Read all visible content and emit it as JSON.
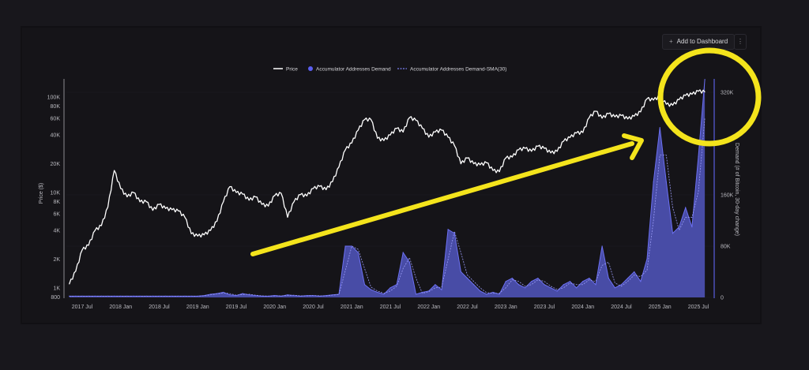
{
  "toolbar": {
    "add_label": "Add to Dashboard",
    "add_icon": "plus-icon",
    "more_icon": "more-vertical-icon"
  },
  "colors": {
    "price": "#ffffff",
    "demand_fill": "#4e52b6",
    "demand_line": "#6c70f2",
    "sma": "#9a9cf8",
    "annotation": "#f4e41c"
  },
  "chart_data": {
    "type": "line+area",
    "legend": {
      "placement": "top-center",
      "items": [
        "Price",
        "Accumulator Addresses Demand",
        "Accumulator Addresses Demand-SMA(30)"
      ]
    },
    "ylabel_left": "Price ($)",
    "ylabel_right": "Demand (# of Bitcoin, 30-day change)",
    "y_left_scale": "log",
    "y_left_ticks": [
      "100K",
      "80K",
      "60K",
      "40K",
      "20K",
      "10K",
      "8K",
      "6K",
      "4K",
      "2K",
      "1K",
      "800"
    ],
    "y_left_tick_values": [
      100000,
      80000,
      60000,
      40000,
      20000,
      10000,
      8000,
      6000,
      4000,
      2000,
      1000,
      800
    ],
    "y_right_ticks": [
      "320K",
      "160K",
      "80K",
      "0"
    ],
    "y_right_tick_values": [
      320000,
      160000,
      80000,
      0
    ],
    "x_ticks": [
      "2017 Jul",
      "2018 Jan",
      "2018 Jul",
      "2019 Jan",
      "2019 Jul",
      "2020 Jan",
      "2020 Jul",
      "2021 Jan",
      "2021 Jul",
      "2022 Jan",
      "2022 Jul",
      "2023 Jan",
      "2023 Jul",
      "2024 Jan",
      "2024 Jul",
      "2025 Jan",
      "2025 Jul"
    ],
    "x_tick_dates": [
      "2017-07",
      "2018-01",
      "2018-07",
      "2019-01",
      "2019-07",
      "2020-01",
      "2020-07",
      "2021-01",
      "2021-07",
      "2022-01",
      "2022-07",
      "2023-01",
      "2023-07",
      "2024-01",
      "2024-07",
      "2025-01",
      "2025-07"
    ],
    "x": [
      "2017-05",
      "2017-06",
      "2017-07",
      "2017-08",
      "2017-09",
      "2017-10",
      "2017-11",
      "2017-12",
      "2018-01",
      "2018-02",
      "2018-03",
      "2018-04",
      "2018-05",
      "2018-06",
      "2018-07",
      "2018-08",
      "2018-09",
      "2018-10",
      "2018-11",
      "2018-12",
      "2019-01",
      "2019-02",
      "2019-03",
      "2019-04",
      "2019-05",
      "2019-06",
      "2019-07",
      "2019-08",
      "2019-09",
      "2019-10",
      "2019-11",
      "2019-12",
      "2020-01",
      "2020-02",
      "2020-03",
      "2020-04",
      "2020-05",
      "2020-06",
      "2020-07",
      "2020-08",
      "2020-09",
      "2020-10",
      "2020-11",
      "2020-12",
      "2021-01",
      "2021-02",
      "2021-03",
      "2021-04",
      "2021-05",
      "2021-06",
      "2021-07",
      "2021-08",
      "2021-09",
      "2021-10",
      "2021-11",
      "2021-12",
      "2022-01",
      "2022-02",
      "2022-03",
      "2022-04",
      "2022-05",
      "2022-06",
      "2022-07",
      "2022-08",
      "2022-09",
      "2022-10",
      "2022-11",
      "2022-12",
      "2023-01",
      "2023-02",
      "2023-03",
      "2023-04",
      "2023-05",
      "2023-06",
      "2023-07",
      "2023-08",
      "2023-09",
      "2023-10",
      "2023-11",
      "2023-12",
      "2024-01",
      "2024-02",
      "2024-03",
      "2024-04",
      "2024-05",
      "2024-06",
      "2024-07",
      "2024-08",
      "2024-09",
      "2024-10",
      "2024-11",
      "2024-12",
      "2025-01",
      "2025-02",
      "2025-03",
      "2025-04",
      "2025-05",
      "2025-06",
      "2025-07",
      "2025-08"
    ],
    "series": [
      {
        "name": "Price",
        "axis": "left",
        "values": [
          1100,
          1500,
          2500,
          2800,
          4000,
          4500,
          7000,
          17000,
          11000,
          9000,
          10000,
          8000,
          8000,
          6500,
          7500,
          6800,
          6600,
          6400,
          5500,
          3700,
          3500,
          3600,
          4000,
          5000,
          8000,
          11500,
          10000,
          9600,
          8300,
          9000,
          7500,
          7200,
          9300,
          9800,
          5500,
          8000,
          9500,
          9200,
          11000,
          11600,
          10700,
          13000,
          18500,
          28000,
          33000,
          45000,
          58000,
          58000,
          37000,
          35000,
          40000,
          47000,
          43000,
          61000,
          57000,
          47000,
          38000,
          43000,
          45000,
          38000,
          31000,
          20000,
          23000,
          20000,
          19500,
          20500,
          17000,
          16500,
          23000,
          23500,
          28000,
          29000,
          27000,
          30500,
          29000,
          26000,
          27000,
          34500,
          37700,
          42000,
          42500,
          61000,
          71000,
          60000,
          67000,
          62000,
          64000,
          59000,
          63000,
          70000,
          96000,
          93000,
          102000,
          84000,
          82000,
          94000,
          104000,
          107000,
          115000,
          113000
        ]
      },
      {
        "name": "Accumulator Addresses Demand",
        "axis": "right",
        "unit": "K",
        "values": [
          2,
          2,
          2,
          2,
          2,
          2,
          2,
          2,
          2,
          2,
          2,
          2,
          2,
          2,
          2,
          2,
          2,
          2,
          2,
          2,
          2,
          3,
          5,
          6,
          8,
          4,
          3,
          6,
          4,
          3,
          2,
          2,
          3,
          2,
          4,
          3,
          2,
          3,
          3,
          2,
          3,
          4,
          5,
          80,
          80,
          70,
          20,
          12,
          8,
          5,
          15,
          20,
          70,
          55,
          5,
          8,
          10,
          20,
          12,
          106,
          100,
          40,
          30,
          20,
          10,
          5,
          8,
          5,
          25,
          30,
          20,
          15,
          25,
          30,
          20,
          15,
          10,
          20,
          25,
          15,
          25,
          30,
          20,
          80,
          30,
          15,
          20,
          30,
          40,
          25,
          60,
          180,
          265,
          180,
          100,
          110,
          140,
          110,
          220,
          340
        ]
      },
      {
        "name": "Accumulator Addresses Demand-SMA(30)",
        "axis": "right",
        "unit": "K",
        "values": [
          2,
          2,
          2,
          2,
          2,
          2,
          2,
          2,
          2,
          2,
          2,
          2,
          2,
          2,
          2,
          2,
          2,
          2,
          2,
          2,
          2,
          2.5,
          4,
          5.5,
          7,
          6,
          3.5,
          4.5,
          5,
          3.5,
          2.5,
          2,
          2.5,
          2.5,
          3,
          3.5,
          2.5,
          2.5,
          3,
          2.5,
          2.5,
          3.5,
          4.5,
          42,
          80,
          75,
          45,
          16,
          10,
          6.5,
          10,
          17.5,
          45,
          62,
          30,
          6.5,
          9,
          15,
          16,
          59,
          103,
          70,
          35,
          25,
          15,
          7.5,
          6.5,
          6.5,
          15,
          27.5,
          25,
          17.5,
          20,
          27.5,
          25,
          17.5,
          12.5,
          15,
          22.5,
          20,
          20,
          27.5,
          25,
          50,
          55,
          22.5,
          17.5,
          25,
          35,
          32.5,
          42.5,
          120,
          222,
          222,
          140,
          105,
          125,
          125,
          165,
          280
        ]
      }
    ]
  }
}
